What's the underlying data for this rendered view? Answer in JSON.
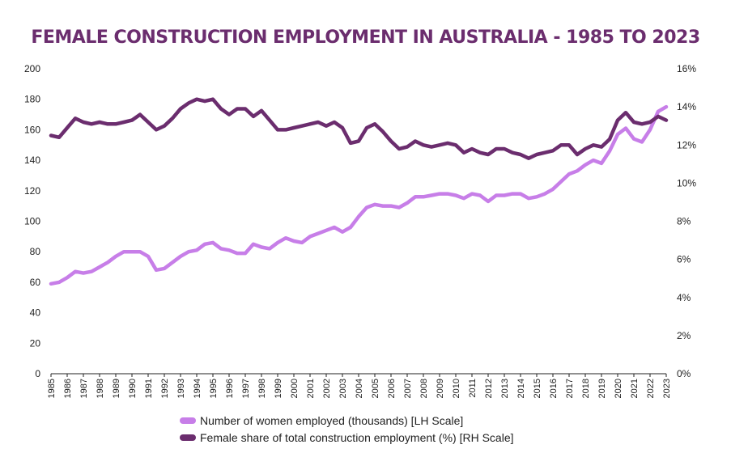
{
  "chart_data": {
    "type": "line",
    "title": "FEMALE CONSTRUCTION EMPLOYMENT IN AUSTRALIA - 1985 TO 2023",
    "x_tick_labels": [
      "1985",
      "1986",
      "1987",
      "1988",
      "1989",
      "1990",
      "1991",
      "1992",
      "1993",
      "1994",
      "1995",
      "1996",
      "1997",
      "1998",
      "1999",
      "2000",
      "2001",
      "2002",
      "2003",
      "2004",
      "2005",
      "2006",
      "2007",
      "2008",
      "2009",
      "2010",
      "2011",
      "2012",
      "2013",
      "2014",
      "2015",
      "2016",
      "2017",
      "2018",
      "2019",
      "2020",
      "2021",
      "2022",
      "2023"
    ],
    "xlim": [
      1985,
      2023
    ],
    "y_left": {
      "lim": [
        0,
        200
      ],
      "ticks": [
        "0",
        "20",
        "40",
        "60",
        "80",
        "100",
        "120",
        "140",
        "160",
        "180",
        "200"
      ]
    },
    "y_right": {
      "lim": [
        0,
        16
      ],
      "ticks": [
        "0%",
        "2%",
        "4%",
        "6%",
        "8%",
        "10%",
        "12%",
        "14%",
        "16%"
      ]
    },
    "grid": false,
    "legend_position": "bottom",
    "series": [
      {
        "name": "Number of women employed (thousands) [LH Scale]",
        "axis": "left",
        "color": "#c77ee8",
        "x": [
          1985,
          1985.5,
          1986,
          1986.5,
          1987,
          1987.5,
          1988,
          1988.5,
          1989,
          1989.5,
          1990,
          1990.5,
          1991,
          1991.5,
          1992,
          1992.5,
          1993,
          1993.5,
          1994,
          1994.5,
          1995,
          1995.5,
          1996,
          1996.5,
          1997,
          1997.5,
          1998,
          1998.5,
          1999,
          1999.5,
          2000,
          2000.5,
          2001,
          2001.5,
          2002,
          2002.5,
          2003,
          2003.5,
          2004,
          2004.5,
          2005,
          2005.5,
          2006,
          2006.5,
          2007,
          2007.5,
          2008,
          2008.5,
          2009,
          2009.5,
          2010,
          2010.5,
          2011,
          2011.5,
          2012,
          2012.5,
          2013,
          2013.5,
          2014,
          2014.5,
          2015,
          2015.5,
          2016,
          2016.5,
          2017,
          2017.5,
          2018,
          2018.5,
          2019,
          2019.5,
          2020,
          2020.5,
          2021,
          2021.5,
          2022,
          2022.5,
          2023
        ],
        "values": [
          59,
          60,
          63,
          67,
          66,
          67,
          70,
          73,
          77,
          80,
          80,
          80,
          77,
          68,
          69,
          73,
          77,
          80,
          81,
          85,
          86,
          82,
          81,
          79,
          79,
          85,
          83,
          82,
          86,
          89,
          87,
          86,
          90,
          92,
          94,
          96,
          93,
          96,
          103,
          109,
          111,
          110,
          110,
          109,
          112,
          116,
          116,
          117,
          118,
          118,
          117,
          115,
          118,
          117,
          113,
          117,
          117,
          118,
          118,
          115,
          116,
          118,
          121,
          126,
          131,
          133,
          137,
          140,
          138,
          146,
          157,
          161,
          154,
          152,
          160,
          172,
          175
        ]
      },
      {
        "name": "Female share of total construction employment (%) [RH Scale]",
        "axis": "right",
        "color": "#6b2d6e",
        "x": [
          1985,
          1985.5,
          1986,
          1986.5,
          1987,
          1987.5,
          1988,
          1988.5,
          1989,
          1989.5,
          1990,
          1990.5,
          1991,
          1991.5,
          1992,
          1992.5,
          1993,
          1993.5,
          1994,
          1994.5,
          1995,
          1995.5,
          1996,
          1996.5,
          1997,
          1997.5,
          1998,
          1998.5,
          1999,
          1999.5,
          2000,
          2000.5,
          2001,
          2001.5,
          2002,
          2002.5,
          2003,
          2003.5,
          2004,
          2004.5,
          2005,
          2005.5,
          2006,
          2006.5,
          2007,
          2007.5,
          2008,
          2008.5,
          2009,
          2009.5,
          2010,
          2010.5,
          2011,
          2011.5,
          2012,
          2012.5,
          2013,
          2013.5,
          2014,
          2014.5,
          2015,
          2015.5,
          2016,
          2016.5,
          2017,
          2017.5,
          2018,
          2018.5,
          2019,
          2019.5,
          2020,
          2020.5,
          2021,
          2021.5,
          2022,
          2022.5,
          2023
        ],
        "values": [
          12.5,
          12.4,
          12.9,
          13.4,
          13.2,
          13.1,
          13.2,
          13.1,
          13.1,
          13.2,
          13.3,
          13.6,
          13.2,
          12.8,
          13.0,
          13.4,
          13.9,
          14.2,
          14.4,
          14.3,
          14.4,
          13.9,
          13.6,
          13.9,
          13.9,
          13.5,
          13.8,
          13.3,
          12.8,
          12.8,
          12.9,
          13.0,
          13.1,
          13.2,
          13.0,
          13.2,
          12.9,
          12.1,
          12.2,
          12.9,
          13.1,
          12.7,
          12.2,
          11.8,
          11.9,
          12.2,
          12.0,
          11.9,
          12.0,
          12.1,
          12.0,
          11.6,
          11.8,
          11.6,
          11.5,
          11.8,
          11.8,
          11.6,
          11.5,
          11.3,
          11.5,
          11.6,
          11.7,
          12.0,
          12.0,
          11.5,
          11.8,
          12.0,
          11.9,
          12.3,
          13.3,
          13.7,
          13.2,
          13.1,
          13.2,
          13.5,
          13.3
        ]
      }
    ]
  }
}
